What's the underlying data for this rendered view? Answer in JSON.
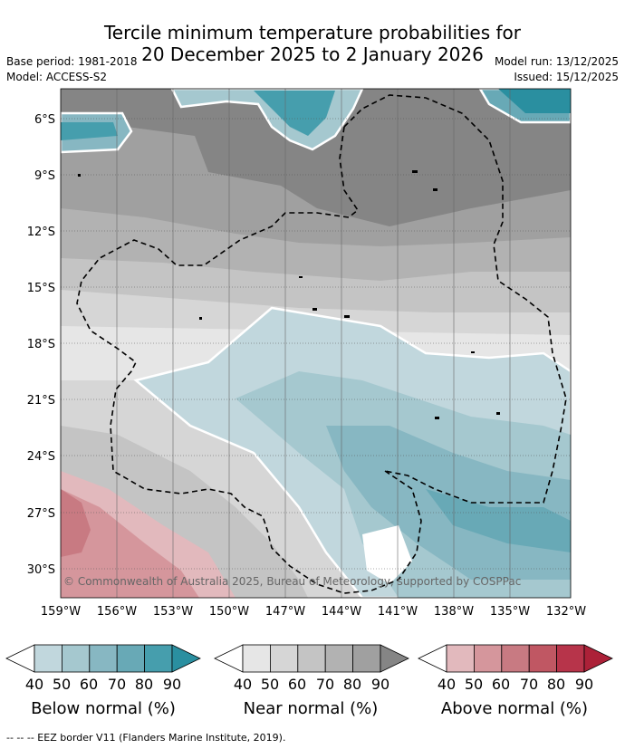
{
  "title": {
    "line1": "Tercile minimum temperature probabilities for",
    "line2": "20 December 2025 to 2 January 2026"
  },
  "meta": {
    "base_period": "Base period: 1981-2018",
    "model": "Model: ACCESS-S2",
    "model_run": "Model run: 13/12/2025",
    "issued": "Issued: 15/12/2025"
  },
  "map": {
    "lat_ticks": [
      "6°S",
      "9°S",
      "12°S",
      "15°S",
      "18°S",
      "21°S",
      "24°S",
      "27°S",
      "30°S"
    ],
    "lon_ticks": [
      "159°W",
      "156°W",
      "153°W",
      "150°W",
      "147°W",
      "144°W",
      "141°W",
      "138°W",
      "135°W",
      "132°W"
    ],
    "copyright": "© Commonwealth of Australia 2025, Bureau of Meteorology, supported by COSPPac"
  },
  "colorbars": [
    {
      "label": "Below normal (%)",
      "ticks": [
        "40",
        "50",
        "60",
        "70",
        "80",
        "90"
      ],
      "colors": [
        "#ffffff",
        "#c1d7dd",
        "#a5c8cf",
        "#87b7c2",
        "#68a9b6",
        "#469ead",
        "#2a8fa0"
      ]
    },
    {
      "label": "Near normal (%)",
      "ticks": [
        "40",
        "50",
        "60",
        "70",
        "80",
        "90"
      ],
      "colors": [
        "#ffffff",
        "#e6e6e6",
        "#d6d6d6",
        "#c4c4c4",
        "#b2b2b2",
        "#a0a0a0",
        "#858585"
      ]
    },
    {
      "label": "Above normal (%)",
      "ticks": [
        "40",
        "50",
        "60",
        "70",
        "80",
        "90"
      ],
      "colors": [
        "#ffffff",
        "#e2b9bd",
        "#d5969c",
        "#c87a82",
        "#c05763",
        "#b7344a",
        "#ac2138"
      ]
    }
  ],
  "footer": "--  --  -- EEZ border V11 (Flanders Marine Institute, 2019)."
}
